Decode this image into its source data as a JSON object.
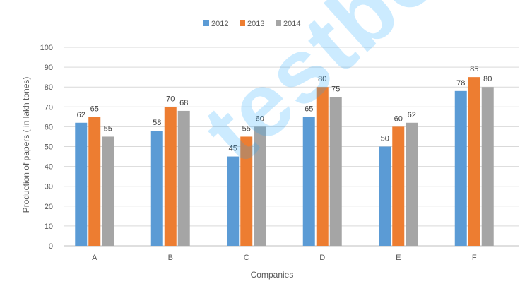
{
  "chart_data": {
    "type": "bar",
    "categories": [
      "A",
      "B",
      "C",
      "D",
      "E",
      "F"
    ],
    "series": [
      {
        "name": "2012",
        "values": [
          62,
          58,
          45,
          65,
          50,
          78
        ],
        "color": "#5b9bd5"
      },
      {
        "name": "2013",
        "values": [
          65,
          70,
          55,
          80,
          60,
          85
        ],
        "color": "#ed7d31"
      },
      {
        "name": "2014",
        "values": [
          55,
          68,
          60,
          75,
          62,
          80
        ],
        "color": "#a5a5a5"
      }
    ],
    "title": "",
    "xlabel": "Companies",
    "ylabel": "Production of papers ( in lakh tones)",
    "ylim": [
      0,
      100
    ],
    "yticks": [
      0,
      10,
      20,
      30,
      40,
      50,
      60,
      70,
      80,
      90,
      100
    ],
    "grid": true,
    "legend_position": "top-center",
    "data_labels": true,
    "watermark_text": "testbook"
  }
}
